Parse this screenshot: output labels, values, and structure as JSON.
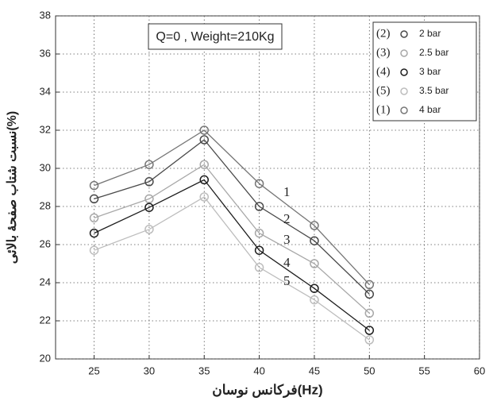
{
  "chart_data": {
    "type": "line",
    "title": "Q=0 , Weight=210Kg",
    "x_label": "فرکانس نوسان(Hz)",
    "y_label": "نسبت شتاب صفحهٔ بالائی(%)",
    "x": [
      25,
      30,
      35,
      40,
      45,
      50
    ],
    "xlim": [
      21.5,
      60
    ],
    "xticks": [
      25,
      30,
      35,
      40,
      45,
      50,
      55,
      60
    ],
    "ylim": [
      20,
      38
    ],
    "yticks": [
      20,
      22,
      24,
      26,
      28,
      30,
      32,
      34,
      36,
      38
    ],
    "grid": true,
    "legend": "upper right",
    "series": [
      {
        "name": "2 bar",
        "tag": "(2)",
        "label": "2",
        "color": "#4a4a4a",
        "values": [
          28.4,
          29.3,
          31.5,
          28.0,
          26.2,
          23.4
        ]
      },
      {
        "name": "2.5 bar",
        "tag": "(3)",
        "label": "3",
        "color": "#a8a8a8",
        "values": [
          27.4,
          28.4,
          30.2,
          26.6,
          25.0,
          22.4
        ]
      },
      {
        "name": "3 bar",
        "tag": "(4)",
        "label": "4",
        "color": "#1e1e1e",
        "values": [
          26.6,
          27.95,
          29.4,
          25.7,
          23.7,
          21.5
        ]
      },
      {
        "name": "3.5 bar",
        "tag": "(5)",
        "label": "5",
        "color": "#bdbdbd",
        "values": [
          25.7,
          26.8,
          28.5,
          24.8,
          23.1,
          21.0
        ]
      },
      {
        "name": "4 bar",
        "tag": "(1)",
        "label": "1",
        "color": "#777777",
        "values": [
          29.1,
          30.2,
          32.0,
          29.2,
          27.0,
          23.9
        ]
      }
    ]
  }
}
